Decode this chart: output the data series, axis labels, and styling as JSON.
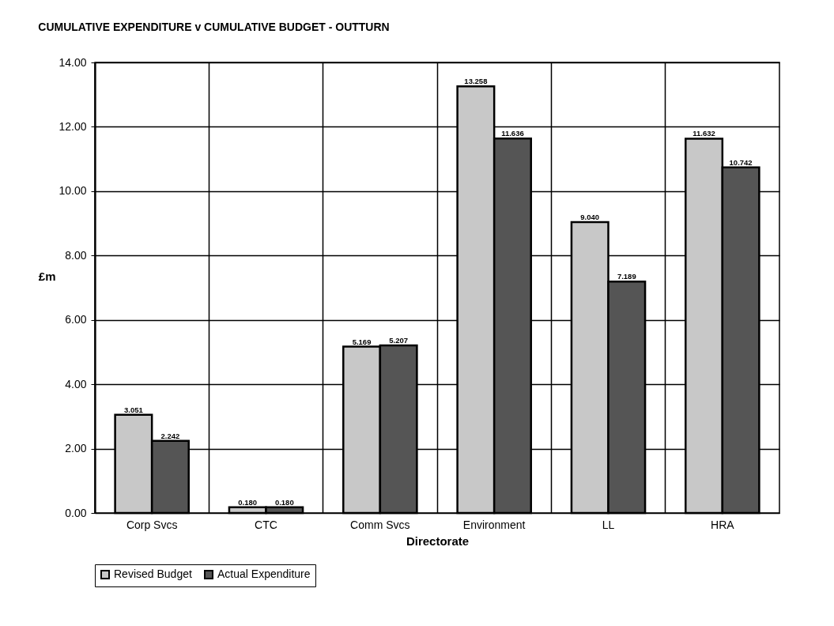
{
  "chart_data": {
    "type": "bar",
    "title": "CUMULATIVE EXPENDITURE v CUMULATIVE BUDGET - OUTTURN",
    "xlabel": "Directorate",
    "ylabel": "£m",
    "categories": [
      "Corp Svcs",
      "CTC",
      "Comm Svcs",
      "Environment",
      "LL",
      "HRA"
    ],
    "series": [
      {
        "name": "Revised Budget",
        "color": "#c8c8c8",
        "values": [
          3.051,
          0.18,
          5.169,
          13.258,
          9.04,
          11.632
        ],
        "value_labels": [
          "3.051",
          "0.180",
          "5.169",
          "13.258",
          "9.040",
          "11.632"
        ]
      },
      {
        "name": "Actual Expenditure",
        "color": "#555555",
        "values": [
          2.242,
          0.18,
          5.207,
          11.636,
          7.189,
          10.742
        ],
        "value_labels": [
          "2.242",
          "0.180",
          "5.207",
          "11.636",
          "7.189",
          "10.742"
        ]
      }
    ],
    "ylim": [
      0,
      14
    ],
    "yticks": [
      {
        "value": 0,
        "label": "0.00"
      },
      {
        "value": 2,
        "label": "2.00"
      },
      {
        "value": 4,
        "label": "4.00"
      },
      {
        "value": 6,
        "label": "6.00"
      },
      {
        "value": 8,
        "label": "8.00"
      },
      {
        "value": 10,
        "label": "10.00"
      },
      {
        "value": 12,
        "label": "12.00"
      },
      {
        "value": 14,
        "label": "14.00"
      }
    ],
    "grid": true,
    "legend": "bottom"
  }
}
